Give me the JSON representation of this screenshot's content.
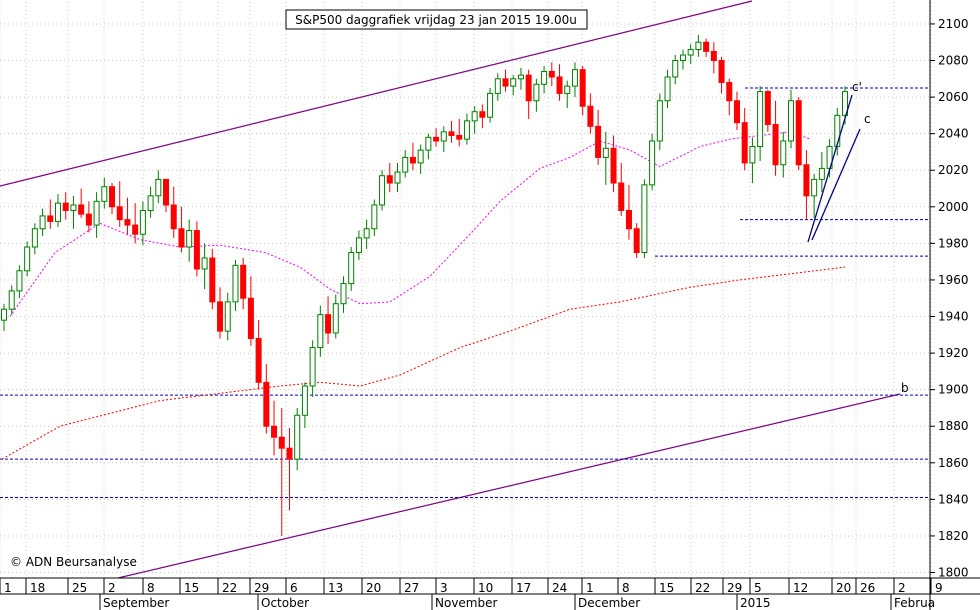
{
  "chart_data": {
    "type": "candlestick",
    "title": "S&P500 daggrafiek vrijdag 23 jan 2015 19.00u",
    "copyright": "© ADN Beursanalyse",
    "ylim": [
      1797,
      2112
    ],
    "y_ticks": [
      1800,
      1820,
      1840,
      1860,
      1880,
      1900,
      1920,
      1940,
      1960,
      1980,
      2000,
      2020,
      2040,
      2060,
      2080,
      2100
    ],
    "x_day_ticks": [
      "1",
      "18",
      "25",
      "2",
      "8",
      "15",
      "22",
      "29",
      "6",
      "13",
      "20",
      "27",
      "3",
      "10",
      "17",
      "24",
      "1",
      "8",
      "15",
      "22",
      "29",
      "5",
      "12",
      "20",
      "26",
      "2",
      "9"
    ],
    "x_month_labels": [
      "September",
      "October",
      "November",
      "December",
      "2015",
      "Februa"
    ],
    "grid": true,
    "colors": {
      "up": "#008000",
      "down": "#ff0000",
      "channel": "#800080",
      "ma_short": "#ff00ff",
      "ma_long": "#ff0000",
      "level": "#0000c0",
      "trend": "#000080",
      "label": "#0000c0"
    },
    "wave_labels": [
      "b",
      "c'",
      "c"
    ],
    "horizontal_levels": [
      1897,
      1862,
      1841,
      1973,
      1993,
      2065
    ],
    "candles": [
      [
        1938,
        1947,
        1932,
        1944
      ],
      [
        1944,
        1957,
        1941,
        1954
      ],
      [
        1954,
        1968,
        1950,
        1965
      ],
      [
        1965,
        1981,
        1962,
        1978
      ],
      [
        1978,
        1991,
        1974,
        1988
      ],
      [
        1988,
        1999,
        1984,
        1995
      ],
      [
        1995,
        2004,
        1988,
        1992
      ],
      [
        1992,
        2007,
        1989,
        2002
      ],
      [
        2002,
        2008,
        1993,
        1998
      ],
      [
        1998,
        2006,
        1988,
        2001
      ],
      [
        2001,
        2010,
        1994,
        1996
      ],
      [
        1996,
        2003,
        1986,
        1990
      ],
      [
        1990,
        2008,
        1983,
        2003
      ],
      [
        2003,
        2016,
        1999,
        2011
      ],
      [
        2011,
        2013,
        1996,
        2000
      ],
      [
        2000,
        2014,
        1989,
        1993
      ],
      [
        1993,
        2005,
        1985,
        1990
      ],
      [
        1990,
        2002,
        1980,
        1985
      ],
      [
        1985,
        2003,
        1979,
        1998
      ],
      [
        1998,
        2011,
        1994,
        2006
      ],
      [
        2006,
        2020,
        2002,
        2015
      ],
      [
        2015,
        2015,
        1997,
        2001
      ],
      [
        2001,
        2011,
        1983,
        1988
      ],
      [
        1988,
        2000,
        1975,
        1978
      ],
      [
        1978,
        1993,
        1970,
        1987
      ],
      [
        1987,
        1992,
        1962,
        1966
      ],
      [
        1966,
        1980,
        1955,
        1972
      ],
      [
        1972,
        1977,
        1944,
        1948
      ],
      [
        1948,
        1956,
        1928,
        1932
      ],
      [
        1932,
        1953,
        1927,
        1948
      ],
      [
        1948,
        1971,
        1943,
        1968
      ],
      [
        1968,
        1972,
        1944,
        1950
      ],
      [
        1950,
        1962,
        1924,
        1928
      ],
      [
        1928,
        1938,
        1900,
        1904
      ],
      [
        1904,
        1914,
        1876,
        1880
      ],
      [
        1880,
        1894,
        1864,
        1874
      ],
      [
        1874,
        1890,
        1820,
        1868
      ],
      [
        1868,
        1879,
        1834,
        1862
      ],
      [
        1862,
        1890,
        1856,
        1886
      ],
      [
        1886,
        1904,
        1879,
        1902
      ],
      [
        1902,
        1927,
        1896,
        1923
      ],
      [
        1923,
        1946,
        1918,
        1941
      ],
      [
        1941,
        1951,
        1925,
        1931
      ],
      [
        1931,
        1952,
        1928,
        1947
      ],
      [
        1947,
        1962,
        1942,
        1958
      ],
      [
        1958,
        1978,
        1954,
        1975
      ],
      [
        1975,
        1987,
        1971,
        1983
      ],
      [
        1983,
        1993,
        1977,
        1988
      ],
      [
        1988,
        2004,
        1984,
        2001
      ],
      [
        2001,
        2020,
        1998,
        2017
      ],
      [
        2017,
        2024,
        2008,
        2013
      ],
      [
        2013,
        2024,
        2008,
        2019
      ],
      [
        2019,
        2031,
        2016,
        2027
      ],
      [
        2027,
        2035,
        2020,
        2024
      ],
      [
        2024,
        2034,
        2018,
        2031
      ],
      [
        2031,
        2040,
        2026,
        2038
      ],
      [
        2038,
        2043,
        2033,
        2036
      ],
      [
        2036,
        2044,
        2030,
        2041
      ],
      [
        2041,
        2047,
        2035,
        2039
      ],
      [
        2039,
        2048,
        2033,
        2037
      ],
      [
        2037,
        2051,
        2034,
        2047
      ],
      [
        2047,
        2055,
        2040,
        2052
      ],
      [
        2052,
        2056,
        2043,
        2049
      ],
      [
        2049,
        2065,
        2046,
        2062
      ],
      [
        2062,
        2073,
        2058,
        2070
      ],
      [
        2070,
        2075,
        2063,
        2066
      ],
      [
        2066,
        2072,
        2061,
        2070
      ],
      [
        2070,
        2076,
        2064,
        2072
      ],
      [
        2072,
        2075,
        2048,
        2058
      ],
      [
        2058,
        2070,
        2052,
        2067
      ],
      [
        2067,
        2077,
        2062,
        2074
      ],
      [
        2074,
        2079,
        2066,
        2071
      ],
      [
        2071,
        2078,
        2058,
        2062
      ],
      [
        2062,
        2069,
        2054,
        2066
      ],
      [
        2066,
        2079,
        2060,
        2075
      ],
      [
        2075,
        2077,
        2050,
        2055
      ],
      [
        2055,
        2062,
        2040,
        2044
      ],
      [
        2044,
        2053,
        2023,
        2027
      ],
      [
        2027,
        2041,
        2012,
        2032
      ],
      [
        2032,
        2039,
        2008,
        2013
      ],
      [
        2013,
        2024,
        1995,
        1998
      ],
      [
        1998,
        2012,
        1982,
        1988
      ],
      [
        1988,
        1991,
        1972,
        1975
      ],
      [
        1975,
        2015,
        1972,
        2012
      ],
      [
        2012,
        2040,
        2009,
        2036
      ],
      [
        2036,
        2062,
        2031,
        2058
      ],
      [
        2058,
        2075,
        2054,
        2071
      ],
      [
        2071,
        2083,
        2067,
        2080
      ],
      [
        2080,
        2086,
        2075,
        2083
      ],
      [
        2083,
        2089,
        2078,
        2086
      ],
      [
        2086,
        2094,
        2082,
        2090
      ],
      [
        2090,
        2092,
        2082,
        2085
      ],
      [
        2085,
        2090,
        2073,
        2080
      ],
      [
        2080,
        2082,
        2062,
        2068
      ],
      [
        2068,
        2070,
        2050,
        2058
      ],
      [
        2058,
        2063,
        2042,
        2046
      ],
      [
        2046,
        2054,
        2020,
        2024
      ],
      [
        2024,
        2038,
        2013,
        2033
      ],
      [
        2033,
        2066,
        2025,
        2063
      ],
      [
        2063,
        2064,
        2041,
        2045
      ],
      [
        2045,
        2058,
        2017,
        2023
      ],
      [
        2023,
        2041,
        2016,
        2036
      ],
      [
        2036,
        2064,
        2032,
        2058
      ],
      [
        2058,
        2060,
        2020,
        2023
      ],
      [
        2023,
        2031,
        1993,
        2006
      ],
      [
        2006,
        2018,
        1994,
        2015
      ],
      [
        2015,
        2030,
        2008,
        2021
      ],
      [
        2021,
        2037,
        2016,
        2033
      ],
      [
        2033,
        2054,
        2028,
        2050
      ],
      [
        2050,
        2066,
        2045,
        2063
      ]
    ],
    "moving_averages": [
      {
        "period": "short",
        "values": [
          [
            1940,
            10
          ],
          [
            1975,
            55
          ],
          [
            1991,
            100
          ],
          [
            1982,
            140
          ],
          [
            1978,
            180
          ],
          [
            1979,
            220
          ],
          [
            1975,
            265
          ],
          [
            1967,
            300
          ],
          [
            1955,
            330
          ],
          [
            1947,
            360
          ],
          [
            1948,
            390
          ],
          [
            1962,
            430
          ],
          [
            1985,
            470
          ],
          [
            2003,
            500
          ],
          [
            2021,
            540
          ],
          [
            2027,
            570
          ],
          [
            2036,
            600
          ],
          [
            2031,
            630
          ],
          [
            2022,
            660
          ],
          [
            2033,
            700
          ],
          [
            2037,
            730
          ],
          [
            2039,
            760
          ],
          [
            2041,
            790
          ],
          [
            2037,
            810
          ]
        ]
      },
      {
        "period": "long",
        "values": [
          [
            1862,
            2
          ],
          [
            1880,
            60
          ],
          [
            1894,
            160
          ],
          [
            1898,
            220
          ],
          [
            1902,
            280
          ],
          [
            1904,
            320
          ],
          [
            1902,
            360
          ],
          [
            1908,
            400
          ],
          [
            1923,
            460
          ],
          [
            1932,
            510
          ],
          [
            1944,
            570
          ],
          [
            1948,
            620
          ],
          [
            1956,
            690
          ],
          [
            1960,
            740
          ],
          [
            1964,
            800
          ],
          [
            1967,
            845
          ]
        ]
      }
    ]
  }
}
